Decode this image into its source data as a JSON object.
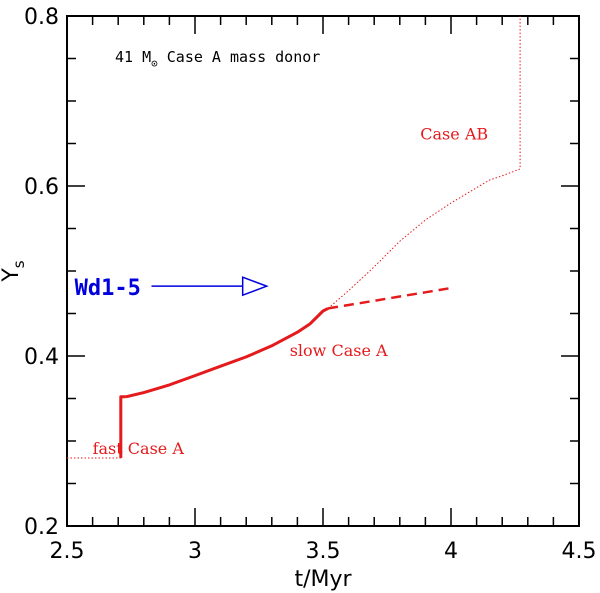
{
  "chart_data": {
    "type": "line",
    "title": "41 M⊙ Case A mass donor",
    "title_prefix": "41 M",
    "title_sub": "⊙",
    "title_suffix": " Case A mass donor",
    "xlabel": "t/Myr",
    "ylabel_main": "Y",
    "ylabel_sub": "s",
    "xlim": [
      2.5,
      4.5
    ],
    "ylim": [
      0.2,
      0.8
    ],
    "x_ticks": [
      2.5,
      3,
      3.5,
      4,
      4.5
    ],
    "x_tick_labels": [
      "2.5",
      "3",
      "3.5",
      "4",
      "4.5"
    ],
    "y_ticks": [
      0.2,
      0.4,
      0.6,
      0.8
    ],
    "y_tick_labels": [
      "0.2",
      "0.4",
      "0.6",
      "0.8"
    ],
    "x_minor_step": 0.1,
    "y_minor_step": 0.05,
    "colors": {
      "track": "#e41a1c",
      "marker": "#0000dd",
      "axis": "#000000"
    },
    "series": [
      {
        "name": "pre-Case A (dotted)",
        "style": "dotted",
        "points": [
          [
            2.5,
            0.28
          ],
          [
            2.71,
            0.28
          ]
        ]
      },
      {
        "name": "fast Case A",
        "style": "solid",
        "points": [
          [
            2.71,
            0.28
          ],
          [
            2.71,
            0.352
          ],
          [
            2.73,
            0.352
          ]
        ]
      },
      {
        "name": "slow Case A",
        "style": "solid",
        "points": [
          [
            2.73,
            0.352
          ],
          [
            2.8,
            0.357
          ],
          [
            2.9,
            0.366
          ],
          [
            3.0,
            0.377
          ],
          [
            3.1,
            0.388
          ],
          [
            3.2,
            0.399
          ],
          [
            3.3,
            0.412
          ],
          [
            3.4,
            0.428
          ],
          [
            3.45,
            0.438
          ],
          [
            3.5,
            0.453
          ],
          [
            3.52,
            0.456
          ]
        ]
      },
      {
        "name": "slow Case A continuation (dashed)",
        "style": "dashed",
        "points": [
          [
            3.52,
            0.456
          ],
          [
            3.6,
            0.46
          ],
          [
            3.7,
            0.465
          ],
          [
            3.8,
            0.47
          ],
          [
            3.9,
            0.475
          ],
          [
            4.0,
            0.48
          ]
        ]
      },
      {
        "name": "Case AB (dotted)",
        "style": "dotted",
        "points": [
          [
            3.52,
            0.456
          ],
          [
            3.6,
            0.477
          ],
          [
            3.7,
            0.505
          ],
          [
            3.8,
            0.535
          ],
          [
            3.9,
            0.56
          ],
          [
            4.0,
            0.58
          ],
          [
            4.1,
            0.598
          ],
          [
            4.15,
            0.607
          ],
          [
            4.2,
            0.612
          ],
          [
            4.27,
            0.62
          ],
          [
            4.27,
            0.8
          ]
        ]
      }
    ],
    "annotations": [
      {
        "text": "fast Case A",
        "x": 2.6,
        "y": 0.285
      },
      {
        "text": "slow Case A",
        "x": 3.37,
        "y": 0.4
      },
      {
        "text": "Case AB",
        "x": 3.88,
        "y": 0.655
      }
    ],
    "marker": {
      "text": "Wd1-5",
      "x": 2.53,
      "y": 0.481,
      "arrow_x_start": 2.83,
      "arrow_x_end": 3.28
    }
  }
}
